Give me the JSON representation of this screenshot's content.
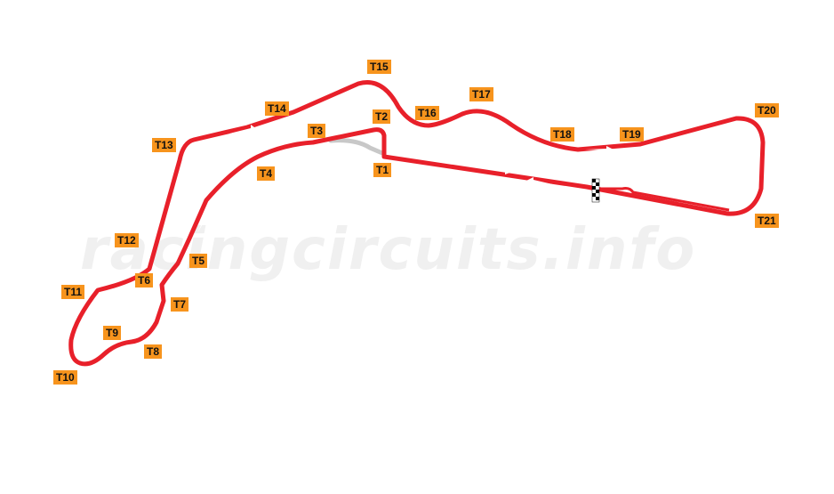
{
  "watermark": "racingcircuits.info",
  "colors": {
    "track": "#e8202a",
    "pit_lane": "#c8c8c8",
    "label_bg": "#f7941d",
    "arrow": "#ffffff"
  },
  "icons": {
    "start_finish": "checkered-flag-icon",
    "direction": "direction-arrow-icon"
  },
  "turns": [
    "T1",
    "T2",
    "T3",
    "T4",
    "T5",
    "T6",
    "T7",
    "T8",
    "T9",
    "T10",
    "T11",
    "T12",
    "T13",
    "T14",
    "T15",
    "T16",
    "T17",
    "T18",
    "T19",
    "T20",
    "T21"
  ]
}
